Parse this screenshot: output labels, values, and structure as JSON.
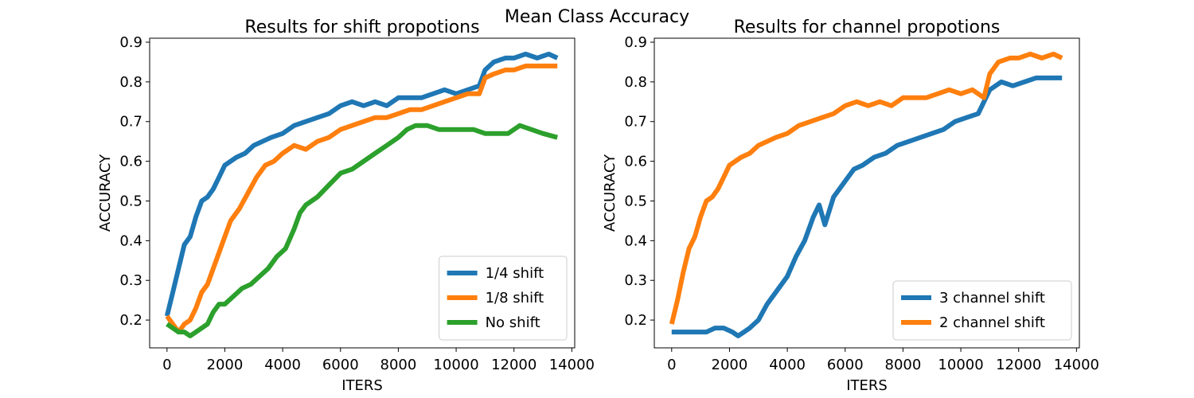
{
  "figure": {
    "suptitle": "Mean Class Accuracy"
  },
  "colors": {
    "blue": "#1f77b4",
    "orange": "#ff7f0e",
    "green": "#2ca02c"
  },
  "chart_data": [
    {
      "type": "line",
      "title": "Results for shift propotions",
      "xlabel": "ITERS",
      "ylabel": "ACCURACY",
      "xlim": [
        -600,
        14100
      ],
      "ylim": [
        0.13,
        0.91
      ],
      "xticks": [
        0,
        2000,
        4000,
        6000,
        8000,
        10000,
        12000,
        14000
      ],
      "yticks": [
        0.2,
        0.3,
        0.4,
        0.5,
        0.6,
        0.7,
        0.8,
        0.9
      ],
      "grid": false,
      "legend_position": "lower-right",
      "series": [
        {
          "name": "1/4 shift",
          "color": "#1f77b4",
          "x": [
            0,
            200,
            400,
            600,
            800,
            1000,
            1200,
            1400,
            1600,
            1800,
            2000,
            2200,
            2400,
            2700,
            3000,
            3300,
            3600,
            4000,
            4400,
            4800,
            5200,
            5600,
            6000,
            6400,
            6800,
            7200,
            7600,
            8000,
            8400,
            8800,
            9200,
            9600,
            10000,
            10400,
            10800,
            11000,
            11300,
            11700,
            12000,
            12400,
            12800,
            13200,
            13500
          ],
          "y": [
            0.21,
            0.27,
            0.33,
            0.39,
            0.41,
            0.46,
            0.5,
            0.51,
            0.53,
            0.56,
            0.59,
            0.6,
            0.61,
            0.62,
            0.64,
            0.65,
            0.66,
            0.67,
            0.69,
            0.7,
            0.71,
            0.72,
            0.74,
            0.75,
            0.74,
            0.75,
            0.74,
            0.76,
            0.76,
            0.76,
            0.77,
            0.78,
            0.77,
            0.78,
            0.79,
            0.83,
            0.85,
            0.86,
            0.86,
            0.87,
            0.86,
            0.87,
            0.86
          ]
        },
        {
          "name": "1/8 shift",
          "color": "#ff7f0e",
          "x": [
            0,
            200,
            400,
            600,
            800,
            1000,
            1200,
            1400,
            1600,
            1800,
            2000,
            2200,
            2500,
            2800,
            3100,
            3400,
            3700,
            4000,
            4400,
            4800,
            5200,
            5600,
            6000,
            6400,
            6800,
            7200,
            7600,
            8000,
            8400,
            8800,
            9200,
            9600,
            10000,
            10400,
            10800,
            11000,
            11300,
            11700,
            12000,
            12400,
            12800,
            13200,
            13500
          ],
          "y": [
            0.21,
            0.19,
            0.17,
            0.19,
            0.2,
            0.23,
            0.27,
            0.29,
            0.33,
            0.37,
            0.41,
            0.45,
            0.48,
            0.52,
            0.56,
            0.59,
            0.6,
            0.62,
            0.64,
            0.63,
            0.65,
            0.66,
            0.68,
            0.69,
            0.7,
            0.71,
            0.71,
            0.72,
            0.73,
            0.73,
            0.74,
            0.75,
            0.76,
            0.77,
            0.77,
            0.81,
            0.82,
            0.83,
            0.83,
            0.84,
            0.84,
            0.84,
            0.84
          ]
        },
        {
          "name": "No shift",
          "color": "#2ca02c",
          "x": [
            0,
            200,
            400,
            600,
            800,
            1000,
            1200,
            1400,
            1600,
            1800,
            2000,
            2300,
            2600,
            2900,
            3200,
            3500,
            3800,
            4100,
            4400,
            4600,
            4800,
            5200,
            5600,
            6000,
            6400,
            6800,
            7200,
            7600,
            8000,
            8300,
            8600,
            9000,
            9400,
            9800,
            10200,
            10600,
            11000,
            11400,
            11800,
            12200,
            12600,
            13000,
            13500
          ],
          "y": [
            0.19,
            0.18,
            0.17,
            0.17,
            0.16,
            0.17,
            0.18,
            0.19,
            0.22,
            0.24,
            0.24,
            0.26,
            0.28,
            0.29,
            0.31,
            0.33,
            0.36,
            0.38,
            0.43,
            0.47,
            0.49,
            0.51,
            0.54,
            0.57,
            0.58,
            0.6,
            0.62,
            0.64,
            0.66,
            0.68,
            0.69,
            0.69,
            0.68,
            0.68,
            0.68,
            0.68,
            0.67,
            0.67,
            0.67,
            0.69,
            0.68,
            0.67,
            0.66
          ]
        }
      ]
    },
    {
      "type": "line",
      "title": "Results for channel propotions",
      "xlabel": "ITERS",
      "ylabel": "ACCURACY",
      "xlim": [
        -600,
        14100
      ],
      "ylim": [
        0.13,
        0.91
      ],
      "xticks": [
        0,
        2000,
        4000,
        6000,
        8000,
        10000,
        12000,
        14000
      ],
      "yticks": [
        0.2,
        0.3,
        0.4,
        0.5,
        0.6,
        0.7,
        0.8,
        0.9
      ],
      "grid": false,
      "legend_position": "lower-right",
      "series": [
        {
          "name": "3 channel shift",
          "color": "#1f77b4",
          "x": [
            0,
            300,
            600,
            900,
            1200,
            1500,
            1800,
            2100,
            2300,
            2500,
            2700,
            3000,
            3300,
            3600,
            4000,
            4300,
            4600,
            4900,
            5100,
            5300,
            5600,
            6000,
            6300,
            6600,
            7000,
            7400,
            7800,
            8200,
            8600,
            9000,
            9400,
            9800,
            10200,
            10600,
            11000,
            11400,
            11800,
            12200,
            12600,
            13000,
            13500
          ],
          "y": [
            0.17,
            0.17,
            0.17,
            0.17,
            0.17,
            0.18,
            0.18,
            0.17,
            0.16,
            0.17,
            0.18,
            0.2,
            0.24,
            0.27,
            0.31,
            0.36,
            0.4,
            0.46,
            0.49,
            0.44,
            0.51,
            0.55,
            0.58,
            0.59,
            0.61,
            0.62,
            0.64,
            0.65,
            0.66,
            0.67,
            0.68,
            0.7,
            0.71,
            0.72,
            0.78,
            0.8,
            0.79,
            0.8,
            0.81,
            0.81,
            0.81
          ]
        },
        {
          "name": "2 channel shift",
          "color": "#ff7f0e",
          "x": [
            0,
            200,
            400,
            600,
            800,
            1000,
            1200,
            1400,
            1600,
            1800,
            2000,
            2200,
            2400,
            2700,
            3000,
            3300,
            3600,
            4000,
            4400,
            4800,
            5200,
            5600,
            6000,
            6400,
            6800,
            7200,
            7600,
            8000,
            8400,
            8800,
            9200,
            9600,
            10000,
            10400,
            10800,
            11000,
            11300,
            11700,
            12000,
            12400,
            12800,
            13200,
            13500
          ],
          "y": [
            0.19,
            0.25,
            0.32,
            0.38,
            0.41,
            0.46,
            0.5,
            0.51,
            0.53,
            0.56,
            0.59,
            0.6,
            0.61,
            0.62,
            0.64,
            0.65,
            0.66,
            0.67,
            0.69,
            0.7,
            0.71,
            0.72,
            0.74,
            0.75,
            0.74,
            0.75,
            0.74,
            0.76,
            0.76,
            0.76,
            0.77,
            0.78,
            0.77,
            0.78,
            0.76,
            0.82,
            0.85,
            0.86,
            0.86,
            0.87,
            0.86,
            0.87,
            0.86
          ]
        }
      ]
    }
  ]
}
